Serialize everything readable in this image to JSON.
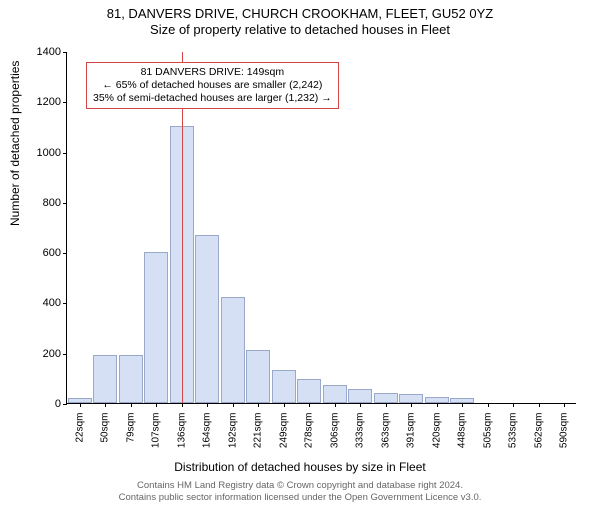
{
  "title_main": "81, DANVERS DRIVE, CHURCH CROOKHAM, FLEET, GU52 0YZ",
  "title_sub": "Size of property relative to detached houses in Fleet",
  "ylabel": "Number of detached properties",
  "xlabel": "Distribution of detached houses by size in Fleet",
  "footer_line1": "Contains HM Land Registry data © Crown copyright and database right 2024.",
  "footer_line2": "Contains public sector information licensed under the Open Government Licence v3.0.",
  "chart": {
    "type": "histogram",
    "background_color": "#ffffff",
    "bar_fill": "#d6e0f5",
    "bar_border": "#9aa8c9",
    "axis_color": "#000000",
    "marker_color": "#d64545",
    "ylim": [
      0,
      1400
    ],
    "yticks": [
      0,
      200,
      400,
      600,
      800,
      1000,
      1200,
      1400
    ],
    "xtick_labels": [
      "22sqm",
      "50sqm",
      "79sqm",
      "107sqm",
      "136sqm",
      "164sqm",
      "192sqm",
      "221sqm",
      "249sqm",
      "278sqm",
      "306sqm",
      "333sqm",
      "363sqm",
      "391sqm",
      "420sqm",
      "448sqm",
      "505sqm",
      "533sqm",
      "562sqm",
      "590sqm"
    ],
    "bars": [
      20,
      190,
      190,
      600,
      1100,
      670,
      420,
      210,
      130,
      95,
      70,
      55,
      40,
      35,
      25,
      20,
      0,
      0,
      0,
      0
    ],
    "marker_position": 4.5,
    "info_box": {
      "line1": "81 DANVERS DRIVE: 149sqm",
      "line2": "← 65% of detached houses are smaller (2,242)",
      "line3": "35% of semi-detached houses are larger (1,232) →"
    }
  }
}
